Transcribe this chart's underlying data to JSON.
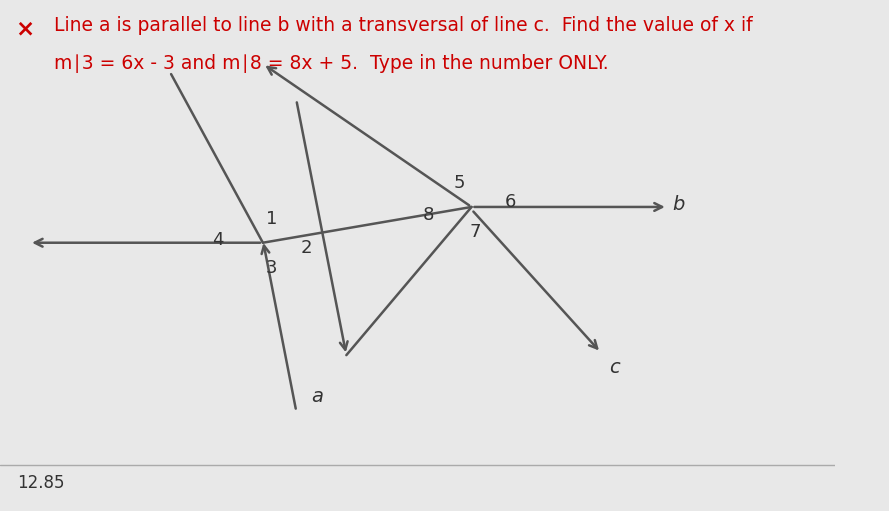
{
  "bg_color": "#e8e8e8",
  "title_color": "#cc0000",
  "x_mark_color": "#cc0000",
  "text_color": "#333333",
  "line_color": "#555555",
  "title_line1": "Line a is parallel to line b with a transversal of line c.  Find the value of x if",
  "title_line2": "m∣3 = 6x - 3 and m∣8 = 8x + 5.  Type in the number ONLY.",
  "answer": "12.85",
  "answer_fontsize": 12,
  "title_fontsize": 13.5,
  "label_fontsize": 14,
  "sep_color": "#aaaaaa"
}
